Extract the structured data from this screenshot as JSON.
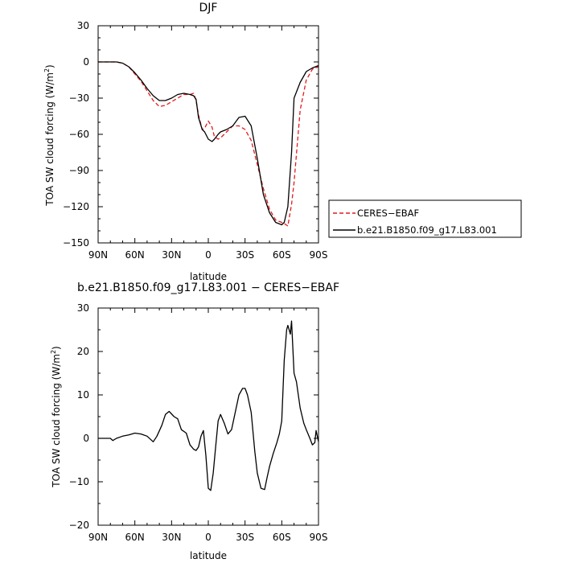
{
  "chart_data": [
    {
      "type": "line",
      "title": "DJF",
      "xlabel": "latitude",
      "ylabel": "TOA SW cloud forcing (W/m²)",
      "ylabel_main": "TOA SW cloud forcing (W/m",
      "ylabel_sup": "2",
      "ylabel_tail": ")",
      "xlim": [
        90,
        -90
      ],
      "ylim": [
        -150,
        30
      ],
      "x_tick_values": [
        90,
        60,
        30,
        0,
        -30,
        -60,
        -90
      ],
      "x_tick_labels": [
        "90N",
        "60N",
        "30N",
        "0",
        "30S",
        "60S",
        "90S"
      ],
      "y_tick_values": [
        30,
        0,
        -30,
        -60,
        -90,
        -120,
        -150
      ],
      "y_tick_labels": [
        "30",
        "0",
        "−30",
        "−60",
        "−90",
        "−120",
        "−150"
      ],
      "grid": false,
      "legend_position": "right",
      "series": [
        {
          "name": "CERES−EBAF",
          "color": "#e41a1c",
          "dash": true,
          "x": [
            90,
            85,
            80,
            75,
            70,
            65,
            60,
            55,
            50,
            45,
            40,
            35,
            30,
            25,
            20,
            15,
            12,
            10,
            8,
            5,
            3,
            0,
            -3,
            -5,
            -8,
            -10,
            -15,
            -20,
            -25,
            -30,
            -35,
            -40,
            -45,
            -50,
            -55,
            -60,
            -62,
            -65,
            -68,
            -70,
            -75,
            -80,
            -85,
            -90
          ],
          "y": [
            0,
            0,
            0,
            0,
            -1,
            -4,
            -10,
            -16,
            -24,
            -32,
            -37,
            -36,
            -33,
            -30,
            -27,
            -27,
            -26,
            -32,
            -44,
            -56,
            -55,
            -49,
            -54,
            -62,
            -64,
            -63,
            -58,
            -53,
            -53,
            -56,
            -65,
            -85,
            -105,
            -122,
            -131,
            -133,
            -134,
            -136,
            -118,
            -100,
            -40,
            -15,
            -6,
            -4
          ]
        },
        {
          "name": "b.e21.B1850.f09_g17.L83.001",
          "color": "#000000",
          "dash": false,
          "x": [
            90,
            85,
            80,
            75,
            70,
            65,
            60,
            55,
            50,
            45,
            40,
            35,
            30,
            25,
            20,
            15,
            12,
            10,
            8,
            5,
            3,
            0,
            -3,
            -5,
            -8,
            -10,
            -15,
            -20,
            -25,
            -30,
            -35,
            -40,
            -45,
            -50,
            -55,
            -60,
            -62,
            -65,
            -68,
            -70,
            -75,
            -80,
            -85,
            -90
          ],
          "y": [
            0,
            0,
            0,
            0,
            -1,
            -4,
            -9,
            -15,
            -22,
            -28,
            -32,
            -32,
            -30,
            -27,
            -26,
            -27,
            -28,
            -31,
            -46,
            -56,
            -58,
            -64,
            -66,
            -64,
            -60,
            -58,
            -56,
            -53,
            -46,
            -45,
            -53,
            -80,
            -110,
            -125,
            -133,
            -135,
            -133,
            -120,
            -75,
            -30,
            -17,
            -8,
            -5,
            -3
          ]
        }
      ]
    },
    {
      "type": "line",
      "title": "b.e21.B1850.f09_g17.L83.001 − CERES−EBAF",
      "xlabel": "latitude",
      "ylabel": "TOA SW cloud forcing (W/m²)",
      "ylabel_main": "TOA SW cloud forcing (W/m",
      "ylabel_sup": "2",
      "ylabel_tail": ")",
      "xlim": [
        90,
        -90
      ],
      "ylim": [
        -20,
        30
      ],
      "x_tick_values": [
        90,
        60,
        30,
        0,
        -30,
        -60,
        -90
      ],
      "x_tick_labels": [
        "90N",
        "60N",
        "30N",
        "0",
        "30S",
        "60S",
        "90S"
      ],
      "y_tick_values": [
        30,
        20,
        10,
        0,
        -10,
        -20
      ],
      "y_tick_labels": [
        "30",
        "20",
        "10",
        "0",
        "−10",
        "−20"
      ],
      "grid": false,
      "series": [
        {
          "color": "#000000",
          "dash": false,
          "x": [
            90,
            85,
            80,
            78,
            75,
            70,
            65,
            60,
            55,
            50,
            45,
            42,
            38,
            35,
            32,
            28,
            25,
            22,
            18,
            15,
            12,
            10,
            8,
            6,
            4,
            2,
            0,
            -2,
            -4,
            -6,
            -8,
            -10,
            -13,
            -16,
            -19,
            -22,
            -25,
            -28,
            -30,
            -32,
            -35,
            -38,
            -40,
            -43,
            -46,
            -48,
            -50,
            -53,
            -56,
            -58,
            -60,
            -62,
            -64,
            -65,
            -66,
            -67,
            -68,
            -70,
            -72,
            -75,
            -78,
            -80,
            -83,
            -85,
            -87,
            -88,
            -90
          ],
          "y": [
            0,
            0,
            0,
            -0.5,
            0,
            0.5,
            0.8,
            1.2,
            1.0,
            0.5,
            -0.8,
            0.5,
            3,
            5.5,
            6.2,
            5,
            4.5,
            2,
            1.2,
            -1.5,
            -2.5,
            -2.8,
            -2,
            0.5,
            1.8,
            -4,
            -11.5,
            -12,
            -8,
            -2,
            4,
            5.5,
            3.5,
            1.0,
            2,
            6,
            10,
            11.5,
            11.5,
            10,
            6,
            -3,
            -8,
            -11.5,
            -11.8,
            -9,
            -6.5,
            -3.5,
            -1,
            1,
            4,
            18,
            25,
            26,
            25,
            24,
            27,
            15,
            13,
            7,
            3.5,
            2,
            0,
            -1.5,
            -1.0,
            1.8,
            -0.8
          ]
        }
      ]
    }
  ]
}
